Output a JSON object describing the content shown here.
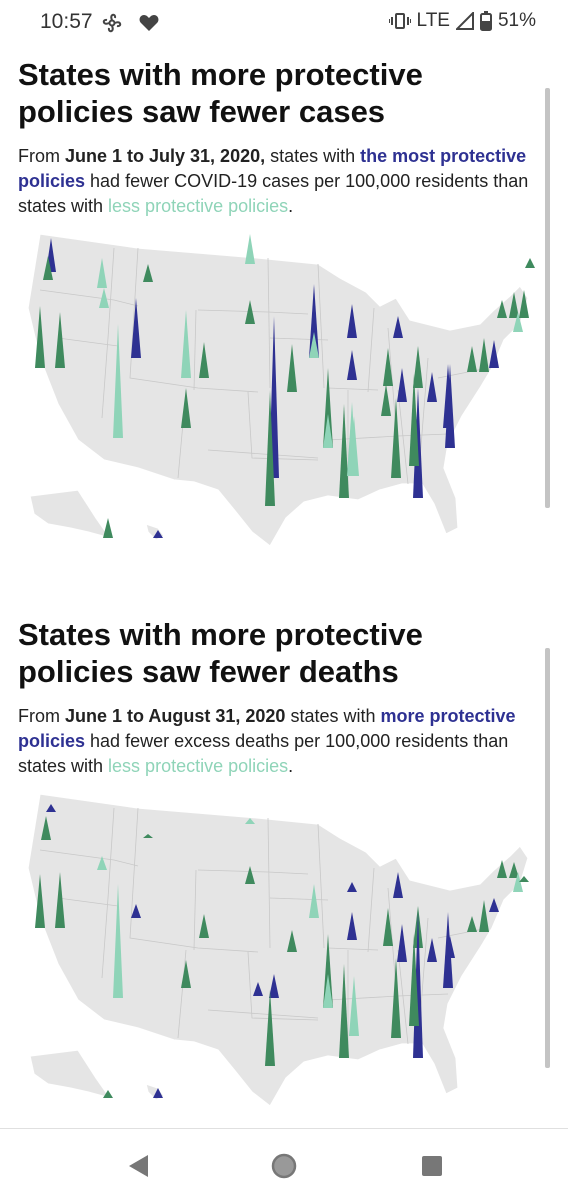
{
  "status_bar": {
    "time": "10:57",
    "network": "LTE",
    "battery": "51%"
  },
  "sections": [
    {
      "title": "States with more protective policies saw fewer cases",
      "desc_parts": {
        "p1": "From ",
        "b1": "June 1 to July 31, 2020,",
        "p2": " states with ",
        "hl_dark": "the most protective policies",
        "p3": " had fewer COVID-19 cases per 100,000 residents than states with ",
        "hl_light": "less protective policies",
        "p4": "."
      }
    },
    {
      "title": "States with more protective policies saw fewer deaths",
      "desc_parts": {
        "p1": "From ",
        "b1": "June 1",
        "p2": " ",
        "b2": "to August 31, 2020",
        "p3": " states with ",
        "hl_dark": "more protective policies",
        "p4": " had fewer excess deaths per 100,000 residents than states with ",
        "hl_light": "less protective policies",
        "p5": "."
      }
    }
  ],
  "colors": {
    "most_protective": "#2e3192",
    "mid_protective": "#3f8a5e",
    "less_protective": "#8fd4b8",
    "map_fill": "#e5e5e5",
    "state_border": "#ffffff"
  },
  "nav": {
    "back": "back-icon",
    "home": "home-icon",
    "recents": "recents-icon"
  }
}
